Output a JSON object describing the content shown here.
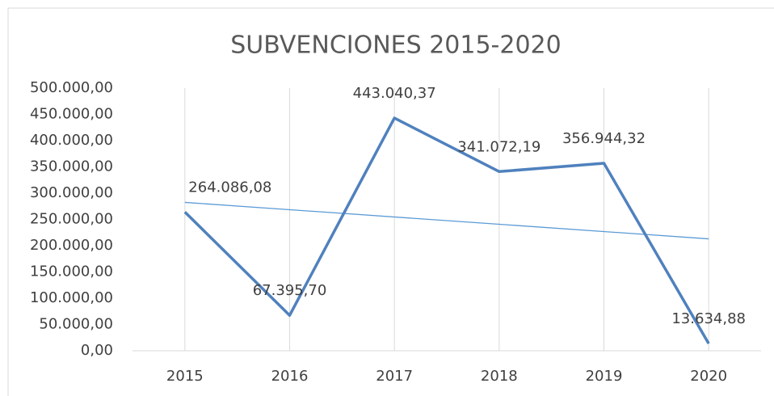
{
  "chart_data": {
    "type": "line",
    "title": "SUBVENCIONES  2015-2020",
    "categories": [
      "2015",
      "2016",
      "2017",
      "2018",
      "2019",
      "2020"
    ],
    "series": [
      {
        "color": "#4f81bd",
        "values": [
          264086.08,
          67395.7,
          443040.37,
          341072.19,
          356944.32,
          13634.88
        ],
        "value_labels": [
          "264.086,08",
          "67.395,70",
          "443.040,37",
          "341.072,19",
          "356.944,32",
          "13.634,88"
        ]
      }
    ],
    "trendline": {
      "type": "linear",
      "color": "#5b9bd5"
    },
    "ylim": [
      0,
      500000
    ],
    "yticks": [
      {
        "value": 0,
        "label": "0,00"
      },
      {
        "value": 50000,
        "label": "50.000,00"
      },
      {
        "value": 100000,
        "label": "100.000,00"
      },
      {
        "value": 150000,
        "label": "150.000,00"
      },
      {
        "value": 200000,
        "label": "200.000,00"
      },
      {
        "value": 250000,
        "label": "250.000,00"
      },
      {
        "value": 300000,
        "label": "300.000,00"
      },
      {
        "value": 350000,
        "label": "350.000,00"
      },
      {
        "value": 400000,
        "label": "400.000,00"
      },
      {
        "value": 450000,
        "label": "450.000,00"
      },
      {
        "value": 500000,
        "label": "500.000,00"
      }
    ],
    "grid": "x"
  }
}
